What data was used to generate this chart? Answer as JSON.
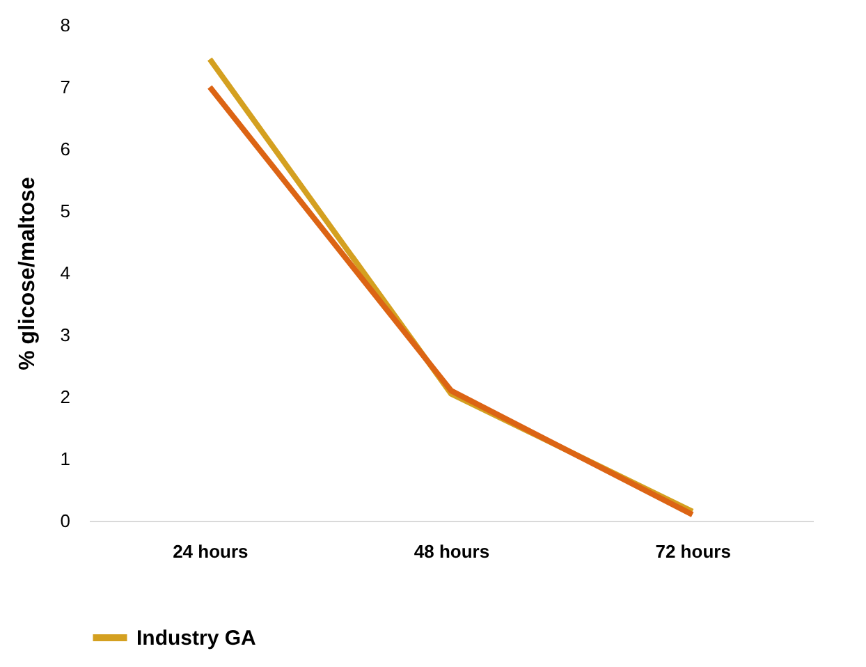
{
  "chart_data": {
    "type": "line",
    "ylabel": "% glicose/maltose",
    "categories": [
      "24 hours",
      "48 hours",
      "72 hours"
    ],
    "series": [
      {
        "name": "Industry GA",
        "color": "#d4a020",
        "values": [
          7.45,
          2.05,
          0.15
        ]
      },
      {
        "color": "#dc6414",
        "values": [
          7.0,
          2.1,
          0.1
        ]
      }
    ],
    "ylim": [
      0,
      8
    ],
    "yticks": [
      0,
      1,
      2,
      3,
      4,
      5,
      6,
      7,
      8
    ],
    "legend": "bottom"
  }
}
